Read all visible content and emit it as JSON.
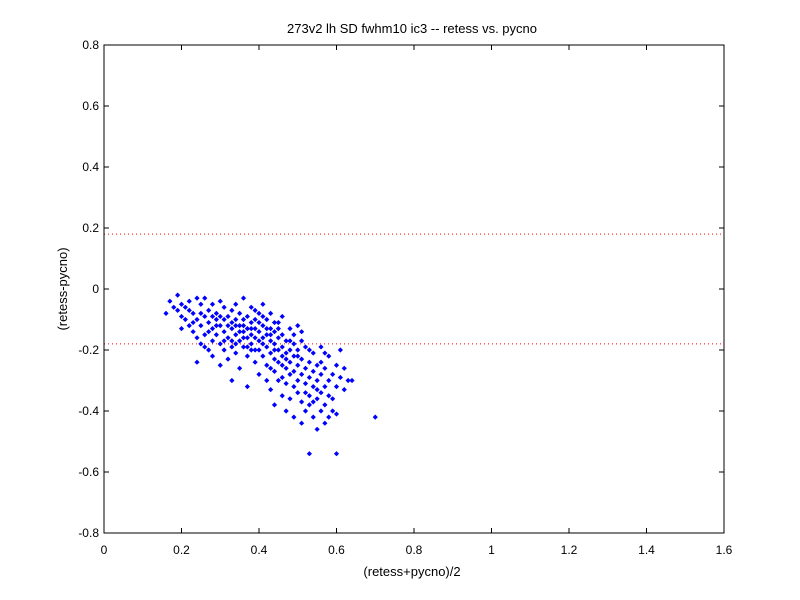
{
  "chart_data": {
    "type": "scatter",
    "title": "273v2 lh SD fwhm10 ic3 -- retess vs. pycno",
    "xlabel": "(retess+pycno)/2",
    "ylabel": "(retess-pycno)",
    "xlim": [
      0,
      1.6
    ],
    "ylim": [
      -0.8,
      0.8
    ],
    "xticks": [
      0,
      0.2,
      0.4,
      0.6,
      0.8,
      1,
      1.2,
      1.4,
      1.6
    ],
    "xtick_labels": [
      "0",
      "0.2",
      "0.4",
      "0.6",
      "0.8",
      "1",
      "1.2",
      "1.4",
      "1.6"
    ],
    "yticks": [
      -0.8,
      -0.6,
      -0.4,
      -0.2,
      0,
      0.2,
      0.4,
      0.6,
      0.8
    ],
    "ytick_labels": [
      "-0.8",
      "-0.6",
      "-0.4",
      "-0.2",
      "0",
      "0.2",
      "0.4",
      "0.6",
      "0.8"
    ],
    "grid": false,
    "reference_lines": [
      {
        "y": 0.18,
        "style": "dotted",
        "color": "#ff0000"
      },
      {
        "y": -0.18,
        "style": "dotted",
        "color": "#ff0000"
      }
    ],
    "series": [
      {
        "color": "#0000ff",
        "marker": "diamond",
        "points": [
          [
            0.16,
            -0.08
          ],
          [
            0.17,
            -0.04
          ],
          [
            0.18,
            -0.06
          ],
          [
            0.19,
            -0.02
          ],
          [
            0.19,
            -0.07
          ],
          [
            0.2,
            -0.05
          ],
          [
            0.2,
            -0.09
          ],
          [
            0.21,
            -0.06
          ],
          [
            0.21,
            -0.1
          ],
          [
            0.22,
            -0.07
          ],
          [
            0.22,
            -0.12
          ],
          [
            0.23,
            -0.08
          ],
          [
            0.23,
            -0.14
          ],
          [
            0.24,
            -0.1
          ],
          [
            0.24,
            -0.03
          ],
          [
            0.24,
            -0.24
          ],
          [
            0.25,
            -0.12
          ],
          [
            0.25,
            -0.05
          ],
          [
            0.25,
            -0.18
          ],
          [
            0.26,
            -0.09
          ],
          [
            0.26,
            -0.15
          ],
          [
            0.26,
            -0.03
          ],
          [
            0.27,
            -0.11
          ],
          [
            0.27,
            -0.2
          ],
          [
            0.27,
            -0.07
          ],
          [
            0.28,
            -0.13
          ],
          [
            0.28,
            -0.17
          ],
          [
            0.28,
            -0.05
          ],
          [
            0.28,
            -0.22
          ],
          [
            0.29,
            -0.1
          ],
          [
            0.29,
            -0.15
          ],
          [
            0.29,
            -0.08
          ],
          [
            0.3,
            -0.12
          ],
          [
            0.3,
            -0.18
          ],
          [
            0.3,
            -0.04
          ],
          [
            0.3,
            -0.25
          ],
          [
            0.31,
            -0.1
          ],
          [
            0.31,
            -0.14
          ],
          [
            0.31,
            -0.2
          ],
          [
            0.32,
            -0.09
          ],
          [
            0.32,
            -0.16
          ],
          [
            0.32,
            -0.12
          ],
          [
            0.32,
            -0.23
          ],
          [
            0.33,
            -0.07
          ],
          [
            0.33,
            -0.13
          ],
          [
            0.33,
            -0.19
          ],
          [
            0.33,
            -0.3
          ],
          [
            0.34,
            -0.1
          ],
          [
            0.34,
            -0.15
          ],
          [
            0.34,
            -0.05
          ],
          [
            0.34,
            -0.21
          ],
          [
            0.35,
            -0.12
          ],
          [
            0.35,
            -0.17
          ],
          [
            0.35,
            -0.08
          ],
          [
            0.35,
            -0.26
          ],
          [
            0.36,
            -0.14
          ],
          [
            0.36,
            -0.1
          ],
          [
            0.36,
            -0.19
          ],
          [
            0.36,
            -0.03
          ],
          [
            0.37,
            -0.13
          ],
          [
            0.37,
            -0.16
          ],
          [
            0.37,
            -0.09
          ],
          [
            0.37,
            -0.22
          ],
          [
            0.37,
            -0.32
          ],
          [
            0.38,
            -0.11
          ],
          [
            0.38,
            -0.15
          ],
          [
            0.38,
            -0.18
          ],
          [
            0.38,
            -0.06
          ],
          [
            0.39,
            -0.13
          ],
          [
            0.39,
            -0.2
          ],
          [
            0.39,
            -0.1
          ],
          [
            0.39,
            -0.24
          ],
          [
            0.4,
            -0.14
          ],
          [
            0.4,
            -0.17
          ],
          [
            0.4,
            -0.08
          ],
          [
            0.4,
            -0.28
          ],
          [
            0.4,
            -0.2
          ],
          [
            0.41,
            -0.12
          ],
          [
            0.41,
            -0.16
          ],
          [
            0.41,
            -0.22
          ],
          [
            0.41,
            -0.05
          ],
          [
            0.42,
            -0.15
          ],
          [
            0.42,
            -0.19
          ],
          [
            0.42,
            -0.1
          ],
          [
            0.42,
            -0.25
          ],
          [
            0.42,
            -0.3
          ],
          [
            0.43,
            -0.17
          ],
          [
            0.43,
            -0.13
          ],
          [
            0.43,
            -0.21
          ],
          [
            0.43,
            -0.08
          ],
          [
            0.43,
            -0.33
          ],
          [
            0.44,
            -0.18
          ],
          [
            0.44,
            -0.23
          ],
          [
            0.44,
            -0.14
          ],
          [
            0.44,
            -0.27
          ],
          [
            0.44,
            -0.38
          ],
          [
            0.45,
            -0.16
          ],
          [
            0.45,
            -0.2
          ],
          [
            0.45,
            -0.11
          ],
          [
            0.45,
            -0.24
          ],
          [
            0.45,
            -0.3
          ],
          [
            0.46,
            -0.19
          ],
          [
            0.46,
            -0.22
          ],
          [
            0.46,
            -0.15
          ],
          [
            0.46,
            -0.35
          ],
          [
            0.46,
            -0.09
          ],
          [
            0.47,
            -0.21
          ],
          [
            0.47,
            -0.26
          ],
          [
            0.47,
            -0.17
          ],
          [
            0.47,
            -0.31
          ],
          [
            0.47,
            -0.4
          ],
          [
            0.48,
            -0.2
          ],
          [
            0.48,
            -0.24
          ],
          [
            0.48,
            -0.13
          ],
          [
            0.48,
            -0.28
          ],
          [
            0.48,
            -0.36
          ],
          [
            0.49,
            -0.22
          ],
          [
            0.49,
            -0.18
          ],
          [
            0.49,
            -0.27
          ],
          [
            0.49,
            -0.42
          ],
          [
            0.5,
            -0.25
          ],
          [
            0.5,
            -0.3
          ],
          [
            0.5,
            -0.2
          ],
          [
            0.5,
            -0.34
          ],
          [
            0.5,
            -0.12
          ],
          [
            0.51,
            -0.23
          ],
          [
            0.51,
            -0.28
          ],
          [
            0.51,
            -0.37
          ],
          [
            0.51,
            -0.44
          ],
          [
            0.52,
            -0.26
          ],
          [
            0.52,
            -0.31
          ],
          [
            0.52,
            -0.19
          ],
          [
            0.52,
            -0.4
          ],
          [
            0.53,
            -0.29
          ],
          [
            0.53,
            -0.24
          ],
          [
            0.53,
            -0.35
          ],
          [
            0.53,
            -0.54
          ],
          [
            0.54,
            -0.27
          ],
          [
            0.54,
            -0.32
          ],
          [
            0.54,
            -0.42
          ],
          [
            0.54,
            -0.21
          ],
          [
            0.55,
            -0.3
          ],
          [
            0.55,
            -0.36
          ],
          [
            0.55,
            -0.25
          ],
          [
            0.55,
            -0.46
          ],
          [
            0.56,
            -0.28
          ],
          [
            0.56,
            -0.34
          ],
          [
            0.56,
            -0.4
          ],
          [
            0.56,
            -0.19
          ],
          [
            0.57,
            -0.32
          ],
          [
            0.57,
            -0.26
          ],
          [
            0.57,
            -0.38
          ],
          [
            0.57,
            -0.44
          ],
          [
            0.58,
            -0.3
          ],
          [
            0.58,
            -0.35
          ],
          [
            0.58,
            -0.22
          ],
          [
            0.58,
            -0.42
          ],
          [
            0.59,
            -0.28
          ],
          [
            0.59,
            -0.36
          ],
          [
            0.6,
            -0.25
          ],
          [
            0.6,
            -0.32
          ],
          [
            0.6,
            -0.41
          ],
          [
            0.6,
            -0.54
          ],
          [
            0.61,
            -0.2
          ],
          [
            0.61,
            -0.29
          ],
          [
            0.62,
            -0.26
          ],
          [
            0.62,
            -0.33
          ],
          [
            0.63,
            -0.3
          ],
          [
            0.64,
            -0.3
          ],
          [
            0.7,
            -0.42
          ],
          [
            0.2,
            -0.13
          ],
          [
            0.22,
            -0.04
          ],
          [
            0.23,
            -0.11
          ],
          [
            0.24,
            -0.16
          ],
          [
            0.26,
            -0.19
          ],
          [
            0.27,
            -0.14
          ],
          [
            0.29,
            -0.12
          ],
          [
            0.3,
            -0.09
          ],
          [
            0.31,
            -0.06
          ],
          [
            0.33,
            -0.17
          ],
          [
            0.34,
            -0.12
          ],
          [
            0.35,
            -0.14
          ],
          [
            0.36,
            -0.16
          ],
          [
            0.38,
            -0.13
          ],
          [
            0.39,
            -0.16
          ],
          [
            0.4,
            -0.11
          ],
          [
            0.41,
            -0.18
          ],
          [
            0.42,
            -0.13
          ],
          [
            0.43,
            -0.15
          ],
          [
            0.44,
            -0.2
          ],
          [
            0.45,
            -0.13
          ],
          [
            0.46,
            -0.25
          ],
          [
            0.47,
            -0.23
          ],
          [
            0.49,
            -0.15
          ],
          [
            0.5,
            -0.22
          ],
          [
            0.51,
            -0.17
          ],
          [
            0.52,
            -0.34
          ],
          [
            0.53,
            -0.38
          ],
          [
            0.55,
            -0.33
          ],
          [
            0.56,
            -0.24
          ],
          [
            0.25,
            -0.08
          ],
          [
            0.28,
            -0.09
          ],
          [
            0.31,
            -0.17
          ],
          [
            0.33,
            -0.11
          ],
          [
            0.36,
            -0.12
          ],
          [
            0.38,
            -0.2
          ],
          [
            0.39,
            -0.07
          ],
          [
            0.41,
            -0.09
          ],
          [
            0.43,
            -0.26
          ],
          [
            0.44,
            -0.11
          ],
          [
            0.46,
            -0.29
          ],
          [
            0.48,
            -0.17
          ],
          [
            0.49,
            -0.32
          ],
          [
            0.51,
            -0.14
          ],
          [
            0.53,
            -0.2
          ],
          [
            0.54,
            -0.37
          ],
          [
            0.57,
            -0.21
          ],
          [
            0.59,
            -0.4
          ],
          [
            0.34,
            -0.18
          ],
          [
            0.37,
            -0.19
          ]
        ]
      }
    ]
  }
}
